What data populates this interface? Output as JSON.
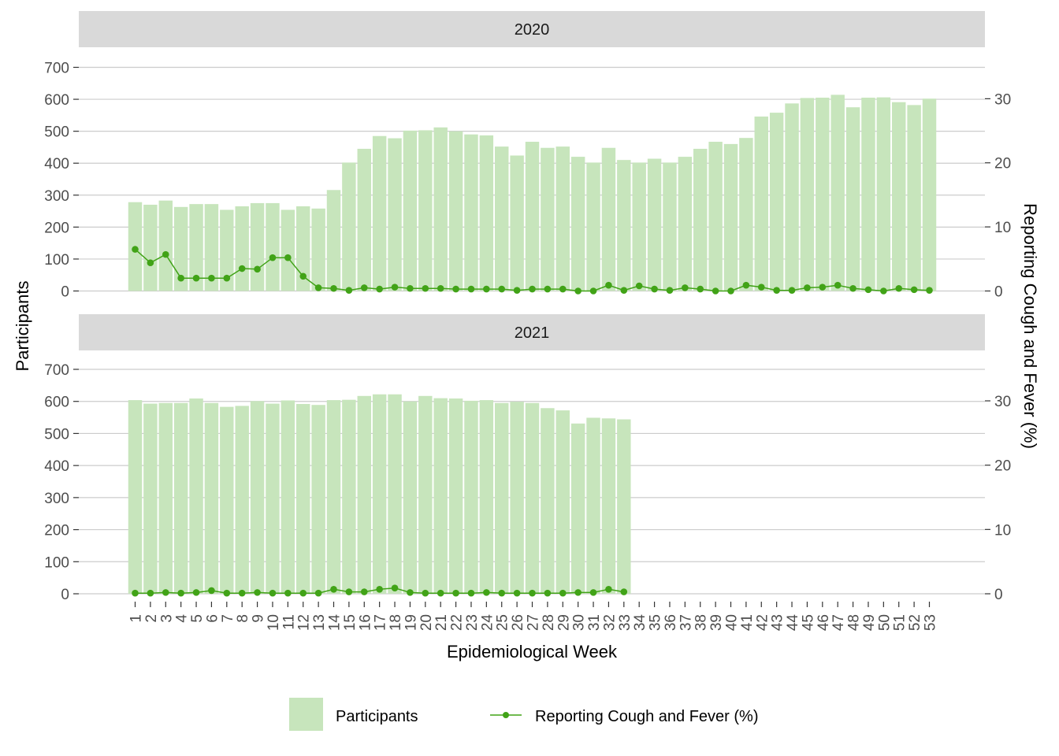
{
  "chart_data": {
    "type": "bar",
    "ylabel_left": "Participants",
    "ylabel_right": "Reporting Cough and Fever (%)",
    "xlabel": "Epidemiological Week",
    "categories": [
      "1",
      "2",
      "3",
      "4",
      "5",
      "6",
      "7",
      "8",
      "9",
      "10",
      "11",
      "12",
      "13",
      "14",
      "15",
      "16",
      "17",
      "18",
      "19",
      "20",
      "21",
      "22",
      "23",
      "24",
      "25",
      "26",
      "27",
      "28",
      "29",
      "30",
      "31",
      "32",
      "33",
      "34",
      "35",
      "36",
      "37",
      "38",
      "39",
      "40",
      "41",
      "42",
      "43",
      "44",
      "45",
      "46",
      "47",
      "48",
      "49",
      "50",
      "51",
      "52",
      "53"
    ],
    "y_left_ticks": [
      0,
      100,
      200,
      300,
      400,
      500,
      600,
      700
    ],
    "y_right_ticks": [
      0,
      10,
      20,
      30
    ],
    "ylim_left": [
      0,
      700
    ],
    "ylim_right": [
      0,
      34.9
    ],
    "legend": {
      "position": "bottom",
      "entries": [
        "Participants",
        "Reporting Cough and Fever (%)"
      ]
    },
    "colors": {
      "bar": "#c7e5bc",
      "line": "#41a317",
      "strip": "#d9d9d9",
      "grid": "#cccccc"
    },
    "panels": [
      {
        "label": "2020",
        "participants": [
          278,
          270,
          283,
          263,
          272,
          272,
          254,
          265,
          275,
          275,
          254,
          265,
          258,
          316,
          402,
          445,
          485,
          478,
          502,
          503,
          512,
          500,
          490,
          487,
          452,
          424,
          467,
          448,
          452,
          420,
          402,
          448,
          410,
          402,
          414,
          402,
          420,
          445,
          467,
          460,
          479,
          546,
          558,
          587,
          604,
          605,
          614,
          575,
          605,
          606,
          591,
          582,
          602
        ],
        "cough_fever_pct": [
          6.5,
          4.4,
          5.7,
          2.0,
          2.0,
          2.0,
          2.0,
          3.5,
          3.4,
          5.2,
          5.2,
          2.3,
          0.5,
          0.4,
          0.1,
          0.5,
          0.3,
          0.6,
          0.4,
          0.4,
          0.4,
          0.3,
          0.3,
          0.3,
          0.3,
          0.1,
          0.3,
          0.3,
          0.3,
          0.0,
          0.0,
          0.9,
          0.1,
          0.8,
          0.3,
          0.1,
          0.5,
          0.3,
          0.0,
          0.0,
          0.9,
          0.6,
          0.1,
          0.1,
          0.5,
          0.6,
          0.9,
          0.4,
          0.2,
          0.0,
          0.4,
          0.2,
          0.1
        ]
      },
      {
        "label": "2021",
        "participants": [
          604,
          593,
          595,
          595,
          609,
          595,
          583,
          586,
          601,
          593,
          603,
          592,
          589,
          604,
          605,
          617,
          622,
          622,
          600,
          617,
          610,
          609,
          602,
          604,
          595,
          599,
          595,
          579,
          572,
          531,
          549,
          547,
          544
        ],
        "cough_fever_pct": [
          0.1,
          0.1,
          0.2,
          0.1,
          0.2,
          0.5,
          0.1,
          0.1,
          0.2,
          0.1,
          0.1,
          0.1,
          0.1,
          0.7,
          0.3,
          0.3,
          0.7,
          0.9,
          0.2,
          0.1,
          0.1,
          0.1,
          0.1,
          0.2,
          0.1,
          0.1,
          0.1,
          0.1,
          0.1,
          0.2,
          0.2,
          0.7,
          0.3
        ]
      }
    ]
  }
}
